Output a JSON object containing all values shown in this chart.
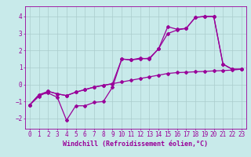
{
  "title": "",
  "xlabel": "Windchill (Refroidissement éolien,°C)",
  "ylabel": "",
  "bg_color": "#c8eaea",
  "line_color": "#990099",
  "grid_color": "#aacccc",
  "xlim": [
    -0.5,
    23.5
  ],
  "ylim": [
    -2.6,
    4.6
  ],
  "yticks": [
    -2,
    -1,
    0,
    1,
    2,
    3,
    4
  ],
  "xticks": [
    0,
    1,
    2,
    3,
    4,
    5,
    6,
    7,
    8,
    9,
    10,
    11,
    12,
    13,
    14,
    15,
    16,
    17,
    18,
    19,
    20,
    21,
    22,
    23
  ],
  "line1_x": [
    0,
    1,
    2,
    3,
    4,
    5,
    6,
    7,
    8,
    9,
    10,
    11,
    12,
    13,
    14,
    15,
    16,
    17,
    18,
    19,
    20,
    21,
    22,
    23
  ],
  "line1_y": [
    -1.2,
    -0.7,
    -0.4,
    -0.55,
    -0.65,
    -0.45,
    -0.3,
    -0.15,
    -0.05,
    0.05,
    0.15,
    0.25,
    0.35,
    0.45,
    0.55,
    0.65,
    0.7,
    0.72,
    0.75,
    0.77,
    0.8,
    0.82,
    0.85,
    0.9
  ],
  "line2_x": [
    0,
    1,
    2,
    3,
    4,
    5,
    6,
    7,
    8,
    9,
    10,
    11,
    12,
    13,
    14,
    15,
    16,
    17,
    18,
    19,
    20,
    21,
    22,
    23
  ],
  "line2_y": [
    -1.2,
    -0.6,
    -0.5,
    -0.75,
    -2.1,
    -1.25,
    -1.25,
    -1.05,
    -1.0,
    -0.15,
    1.5,
    1.45,
    1.5,
    1.55,
    2.1,
    3.4,
    3.25,
    3.3,
    3.95,
    4.0,
    4.0,
    1.2,
    0.9,
    0.9
  ],
  "line3_x": [
    0,
    1,
    2,
    3,
    4,
    5,
    6,
    7,
    8,
    9,
    10,
    11,
    12,
    13,
    14,
    15,
    16,
    17,
    18,
    19,
    20,
    21,
    22,
    23
  ],
  "line3_y": [
    -1.2,
    -0.6,
    -0.4,
    -0.55,
    -0.65,
    -0.45,
    -0.3,
    -0.15,
    -0.05,
    0.05,
    1.5,
    1.45,
    1.55,
    1.5,
    2.1,
    3.0,
    3.2,
    3.3,
    3.95,
    4.0,
    4.0,
    1.2,
    0.9,
    0.9
  ],
  "marker": "D",
  "markersize": 2,
  "linewidth": 0.9,
  "xlabel_fontsize": 6,
  "tick_fontsize": 5.5
}
